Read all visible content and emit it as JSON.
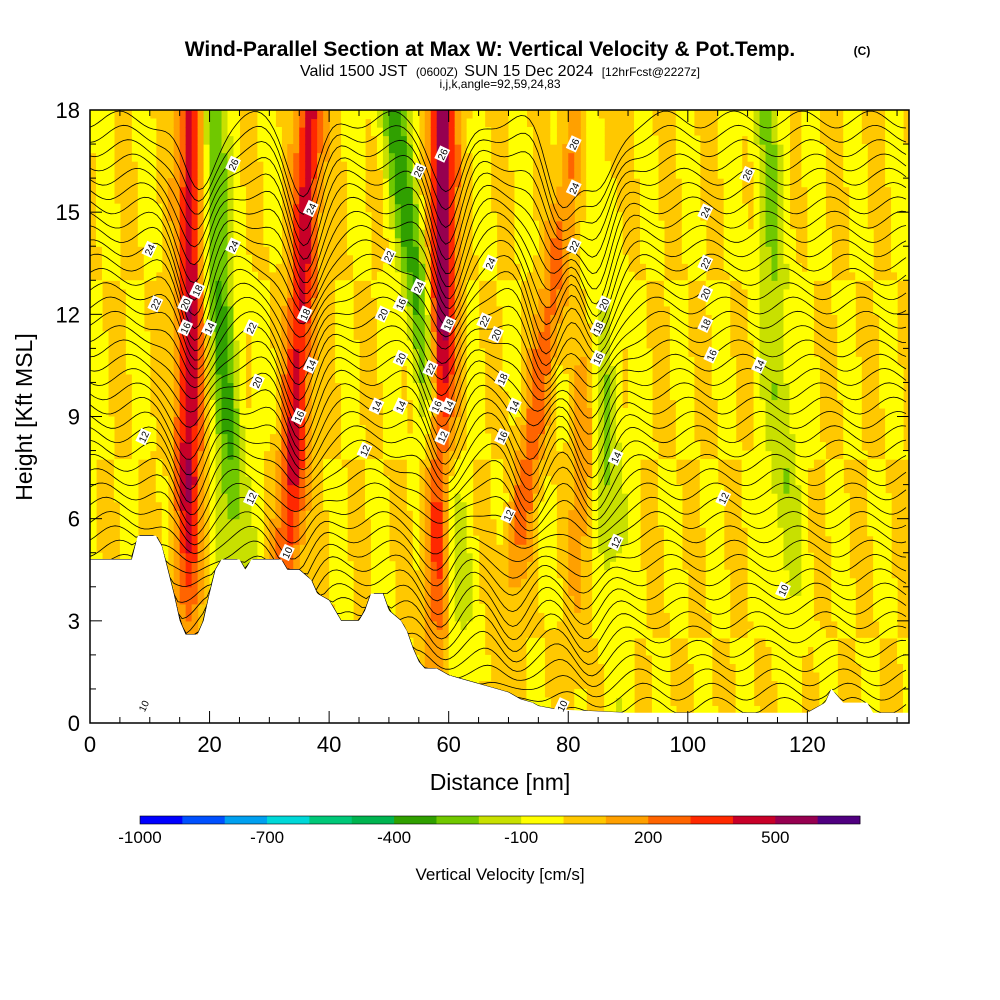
{
  "title": {
    "main": "Wind-Parallel Section at Max W: Vertical Velocity & Pot.Temp.",
    "copyright": "(C)",
    "valid_prefix": "Valid 1500 JST",
    "valid_utc": "(0600Z)",
    "valid_date": "SUN 15 Dec 2024",
    "forecast": "[12hrFcst@2227z]",
    "ijk": "i,j,k,angle=92,59,24,83"
  },
  "colorbar": {
    "title": "Vertical Velocity [cm/s]",
    "labels": [
      "-1000",
      "-700",
      "-400",
      "-100",
      "200",
      "500"
    ],
    "levels": [
      -1000,
      -900,
      -800,
      -700,
      -600,
      -500,
      -400,
      -300,
      -200,
      -100,
      0,
      100,
      200,
      300,
      400,
      500,
      600
    ],
    "colors": [
      "#0000ff",
      "#0050ff",
      "#00a0f0",
      "#00d8d8",
      "#00c878",
      "#00b450",
      "#30a000",
      "#70c800",
      "#c8e000",
      "#ffff00",
      "#ffc800",
      "#ffa000",
      "#ff6400",
      "#ff2800",
      "#c80028",
      "#960050",
      "#500080"
    ]
  },
  "chart_data": {
    "type": "heatmap",
    "title": "Wind-Parallel Section at Max W: Vertical Velocity & Pot.Temp.",
    "xlabel": "Distance [nm]",
    "ylabel": "Height [Kft MSL]",
    "xlim": [
      0,
      137
    ],
    "ylim": [
      0,
      18
    ],
    "x_ticks": [
      0,
      20,
      40,
      60,
      80,
      100,
      120
    ],
    "y_ticks": [
      0,
      3,
      6,
      9,
      12,
      15,
      18
    ],
    "fill_variable": "Vertical Velocity [cm/s]",
    "contour_variable": "Pot.Temp.",
    "updraft_bands": [
      {
        "x_base": 16,
        "x_top": 17,
        "w_max": 500
      },
      {
        "x_base": 32,
        "x_top": 37,
        "w_max": 450
      },
      {
        "x_base": 58,
        "x_top": 59,
        "w_max": 600
      },
      {
        "x_base": 67,
        "x_top": 82,
        "w_max": 250
      },
      {
        "x_base": 81,
        "x_top": 86,
        "w_max": 200
      }
    ],
    "downdraft_bands": [
      {
        "x_base": 26,
        "x_top": 20,
        "w_min": -300
      },
      {
        "x_base": 64,
        "x_top": 51,
        "w_min": -350
      },
      {
        "x_base": 88,
        "x_top": 84,
        "w_min": -250
      },
      {
        "x_base": 118,
        "x_top": 113,
        "w_min": -200
      }
    ],
    "terrain": [
      [
        0,
        4.8
      ],
      [
        3,
        4.8
      ],
      [
        7,
        4.8
      ],
      [
        8,
        5.5
      ],
      [
        11,
        5.5
      ],
      [
        12,
        5.2
      ],
      [
        13,
        4.5
      ],
      [
        14,
        3.8
      ],
      [
        15,
        3.0
      ],
      [
        16,
        2.6
      ],
      [
        18,
        2.6
      ],
      [
        19,
        3.0
      ],
      [
        20,
        3.8
      ],
      [
        21,
        4.5
      ],
      [
        22,
        4.8
      ],
      [
        25,
        4.8
      ],
      [
        26,
        4.5
      ],
      [
        27,
        4.8
      ],
      [
        32,
        4.8
      ],
      [
        33,
        4.5
      ],
      [
        35,
        4.5
      ],
      [
        37,
        4.2
      ],
      [
        38,
        3.8
      ],
      [
        40,
        3.6
      ],
      [
        41,
        3.3
      ],
      [
        42,
        3.0
      ],
      [
        45,
        3.0
      ],
      [
        46,
        3.3
      ],
      [
        47,
        3.8
      ],
      [
        49,
        3.8
      ],
      [
        50,
        3.3
      ],
      [
        52,
        3.0
      ],
      [
        53,
        2.7
      ],
      [
        54,
        2.2
      ],
      [
        55,
        1.8
      ],
      [
        56,
        1.6
      ],
      [
        58,
        1.6
      ],
      [
        60,
        1.4
      ],
      [
        62,
        1.3
      ],
      [
        64,
        1.2
      ],
      [
        66,
        1.1
      ],
      [
        68,
        1.0
      ],
      [
        70,
        0.9
      ],
      [
        72,
        0.7
      ],
      [
        74,
        0.6
      ],
      [
        75,
        0.5
      ],
      [
        78,
        0.4
      ],
      [
        90,
        0.3
      ],
      [
        120,
        0.3
      ],
      [
        123,
        0.6
      ],
      [
        124,
        1.0
      ],
      [
        126,
        0.6
      ],
      [
        130,
        0.6
      ],
      [
        131,
        0.3
      ],
      [
        137,
        0.3
      ]
    ],
    "contour_labels": [
      {
        "x": 9,
        "y": 0.5,
        "text": "10"
      },
      {
        "x": 9,
        "y": 8.4,
        "text": "12"
      },
      {
        "x": 11,
        "y": 12.3,
        "text": "22"
      },
      {
        "x": 10,
        "y": 13.9,
        "text": "24"
      },
      {
        "x": 16,
        "y": 11.6,
        "text": "16"
      },
      {
        "x": 16,
        "y": 12.3,
        "text": "20"
      },
      {
        "x": 18,
        "y": 12.7,
        "text": "18"
      },
      {
        "x": 20,
        "y": 11.6,
        "text": "14"
      },
      {
        "x": 24,
        "y": 14.0,
        "text": "24"
      },
      {
        "x": 24,
        "y": 16.4,
        "text": "26"
      },
      {
        "x": 27,
        "y": 11.6,
        "text": "22"
      },
      {
        "x": 28,
        "y": 10.0,
        "text": "20"
      },
      {
        "x": 27,
        "y": 6.6,
        "text": "12"
      },
      {
        "x": 33,
        "y": 5.0,
        "text": "10"
      },
      {
        "x": 35,
        "y": 9.0,
        "text": "16"
      },
      {
        "x": 37,
        "y": 10.5,
        "text": "14"
      },
      {
        "x": 36,
        "y": 12.0,
        "text": "18"
      },
      {
        "x": 37,
        "y": 15.1,
        "text": "24"
      },
      {
        "x": 46,
        "y": 8.0,
        "text": "12"
      },
      {
        "x": 48,
        "y": 9.3,
        "text": "14"
      },
      {
        "x": 49,
        "y": 12.0,
        "text": "20"
      },
      {
        "x": 50,
        "y": 13.7,
        "text": "22"
      },
      {
        "x": 52,
        "y": 12.3,
        "text": "16"
      },
      {
        "x": 52,
        "y": 9.3,
        "text": "14"
      },
      {
        "x": 52,
        "y": 10.7,
        "text": "20"
      },
      {
        "x": 55,
        "y": 16.2,
        "text": "26"
      },
      {
        "x": 55,
        "y": 12.8,
        "text": "24"
      },
      {
        "x": 57,
        "y": 10.4,
        "text": "22"
      },
      {
        "x": 58,
        "y": 9.3,
        "text": "16"
      },
      {
        "x": 59,
        "y": 8.4,
        "text": "12"
      },
      {
        "x": 60,
        "y": 9.3,
        "text": "14"
      },
      {
        "x": 60,
        "y": 11.7,
        "text": "18"
      },
      {
        "x": 59,
        "y": 16.7,
        "text": "26"
      },
      {
        "x": 67,
        "y": 13.5,
        "text": "24"
      },
      {
        "x": 66,
        "y": 11.8,
        "text": "22"
      },
      {
        "x": 68,
        "y": 11.4,
        "text": "20"
      },
      {
        "x": 69,
        "y": 10.1,
        "text": "18"
      },
      {
        "x": 69,
        "y": 8.4,
        "text": "16"
      },
      {
        "x": 71,
        "y": 9.3,
        "text": "14"
      },
      {
        "x": 70,
        "y": 6.1,
        "text": "12"
      },
      {
        "x": 79,
        "y": 0.5,
        "text": "10"
      },
      {
        "x": 81,
        "y": 17.0,
        "text": "26"
      },
      {
        "x": 81,
        "y": 15.7,
        "text": "24"
      },
      {
        "x": 81,
        "y": 14.0,
        "text": "22"
      },
      {
        "x": 86,
        "y": 12.3,
        "text": "20"
      },
      {
        "x": 85,
        "y": 11.6,
        "text": "18"
      },
      {
        "x": 85,
        "y": 10.7,
        "text": "16"
      },
      {
        "x": 88,
        "y": 7.8,
        "text": "14"
      },
      {
        "x": 88,
        "y": 5.3,
        "text": "12"
      },
      {
        "x": 103,
        "y": 15.0,
        "text": "24"
      },
      {
        "x": 103,
        "y": 13.5,
        "text": "22"
      },
      {
        "x": 103,
        "y": 12.6,
        "text": "20"
      },
      {
        "x": 103,
        "y": 11.7,
        "text": "18"
      },
      {
        "x": 104,
        "y": 10.8,
        "text": "16"
      },
      {
        "x": 110,
        "y": 16.1,
        "text": "26"
      },
      {
        "x": 112,
        "y": 10.5,
        "text": "14"
      },
      {
        "x": 106,
        "y": 6.6,
        "text": "12"
      },
      {
        "x": 116,
        "y": 3.9,
        "text": "10"
      }
    ]
  }
}
